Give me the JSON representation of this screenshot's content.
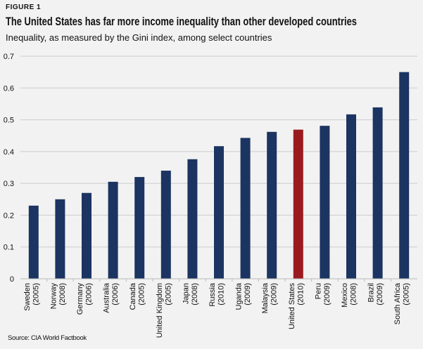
{
  "header": {
    "figure_label": "FIGURE 1",
    "title": "The United States has far more income inequality than other developed countries",
    "subtitle": "Inequality, as measured by the Gini index, among select countries"
  },
  "footer": {
    "source": "Source: CIA World Factbook"
  },
  "colors": {
    "bar": "#1c3461",
    "highlight": "#9a1b1f",
    "grid": "#cccccc",
    "background": "#f2f2f2"
  },
  "chart_data": {
    "type": "bar",
    "title": "The United States has far more income inequality than other developed countries",
    "subtitle": "Inequality, as measured by the Gini index, among select countries",
    "categories": [
      [
        "Sweden",
        "(2005)"
      ],
      [
        "Norway",
        "(2008)"
      ],
      [
        "Germany",
        "(2006)"
      ],
      [
        "Australia",
        "(2006)"
      ],
      [
        "Canada",
        "(2005)"
      ],
      [
        "United Kingdom",
        "(2005)"
      ],
      [
        "Japan",
        "(2008)"
      ],
      [
        "Russia",
        "(2010)"
      ],
      [
        "Uganda",
        "(2009)"
      ],
      [
        "Malaysia",
        "(2009)"
      ],
      [
        "United States",
        "(2010)"
      ],
      [
        "Peru",
        "(2009)"
      ],
      [
        "Mexico",
        "(2008)"
      ],
      [
        "Brazil",
        "(2009)"
      ],
      [
        "South Africa",
        "(2005)"
      ]
    ],
    "values": [
      0.23,
      0.25,
      0.27,
      0.305,
      0.32,
      0.34,
      0.376,
      0.417,
      0.443,
      0.462,
      0.469,
      0.481,
      0.517,
      0.539,
      0.65
    ],
    "highlight": "United States",
    "ylim": [
      0,
      0.7
    ],
    "yticks": [
      "0",
      "0.1",
      "0.2",
      "0.3",
      "0.4",
      "0.5",
      "0.6",
      "0.7"
    ],
    "grid": true,
    "xlabel": "",
    "ylabel": ""
  }
}
